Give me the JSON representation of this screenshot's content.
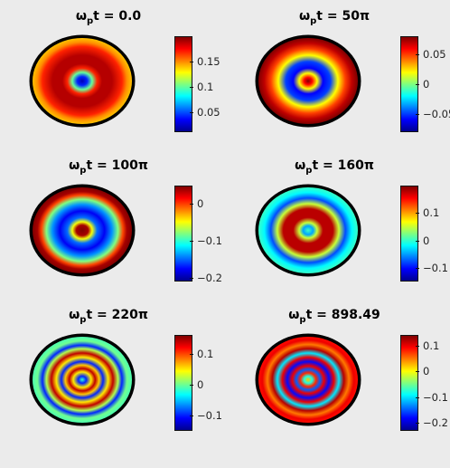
{
  "chart_data": [
    {
      "type": "heatmap",
      "title": {
        "omega": "ω",
        "sub": "p",
        "rest": "t = 0.0"
      },
      "colorbar": {
        "range": [
          0.01,
          0.2
        ],
        "ticks": [
          0.05,
          0.1,
          0.15
        ],
        "tick_labels": [
          "0.05",
          "0.1",
          "0.15"
        ]
      },
      "rings": [
        {
          "r": 0.0,
          "v": 0.02
        },
        {
          "r": 0.1,
          "v": 0.04
        },
        {
          "r": 0.2,
          "v": 0.1
        },
        {
          "r": 0.3,
          "v": 0.17
        },
        {
          "r": 0.4,
          "v": 0.19
        },
        {
          "r": 0.6,
          "v": 0.19
        },
        {
          "r": 0.8,
          "v": 0.17
        },
        {
          "r": 0.9,
          "v": 0.15
        },
        {
          "r": 1.0,
          "v": 0.14
        }
      ]
    },
    {
      "type": "heatmap",
      "title": {
        "omega": "ω",
        "sub": "p",
        "rest": "t = 50π"
      },
      "colorbar": {
        "range": [
          -0.08,
          0.08
        ],
        "ticks": [
          -0.05,
          0,
          0.05
        ],
        "tick_labels": [
          "−0.05",
          "0",
          "0.05"
        ]
      },
      "rings": [
        {
          "r": 0.0,
          "v": 0.08
        },
        {
          "r": 0.08,
          "v": 0.06
        },
        {
          "r": 0.18,
          "v": 0.02
        },
        {
          "r": 0.3,
          "v": -0.06
        },
        {
          "r": 0.45,
          "v": -0.05
        },
        {
          "r": 0.6,
          "v": 0.02
        },
        {
          "r": 0.75,
          "v": 0.05
        },
        {
          "r": 0.88,
          "v": 0.07
        },
        {
          "r": 1.0,
          "v": 0.08
        }
      ]
    },
    {
      "type": "heatmap",
      "title": {
        "omega": "ω",
        "sub": "p",
        "rest": "t = 100π"
      },
      "colorbar": {
        "range": [
          -0.21,
          0.05
        ],
        "ticks": [
          -0.2,
          -0.1,
          0
        ],
        "tick_labels": [
          "−0.2",
          "−0.1",
          "0"
        ]
      },
      "rings": [
        {
          "r": 0.0,
          "v": 0.05
        },
        {
          "r": 0.12,
          "v": 0.04
        },
        {
          "r": 0.2,
          "v": -0.05
        },
        {
          "r": 0.3,
          "v": -0.15
        },
        {
          "r": 0.45,
          "v": -0.18
        },
        {
          "r": 0.6,
          "v": -0.14
        },
        {
          "r": 0.72,
          "v": -0.08
        },
        {
          "r": 0.82,
          "v": 0.0
        },
        {
          "r": 0.9,
          "v": 0.04
        },
        {
          "r": 1.0,
          "v": 0.05
        }
      ]
    },
    {
      "type": "heatmap",
      "title": {
        "omega": "ω",
        "sub": "p",
        "rest": "t = 160π"
      },
      "colorbar": {
        "range": [
          -0.15,
          0.2
        ],
        "ticks": [
          -0.1,
          0,
          0.1
        ],
        "tick_labels": [
          "−0.1",
          "0",
          "0.1"
        ]
      },
      "rings": [
        {
          "r": 0.0,
          "v": 0.0
        },
        {
          "r": 0.1,
          "v": -0.05
        },
        {
          "r": 0.18,
          "v": 0.05
        },
        {
          "r": 0.3,
          "v": 0.18
        },
        {
          "r": 0.5,
          "v": 0.18
        },
        {
          "r": 0.62,
          "v": 0.05
        },
        {
          "r": 0.75,
          "v": -0.08
        },
        {
          "r": 0.88,
          "v": -0.02
        },
        {
          "r": 1.0,
          "v": 0.0
        }
      ]
    },
    {
      "type": "heatmap",
      "title": {
        "omega": "ω",
        "sub": "p",
        "rest": "t = 220π"
      },
      "colorbar": {
        "range": [
          -0.15,
          0.16
        ],
        "ticks": [
          -0.1,
          0,
          0.1
        ],
        "tick_labels": [
          "−0.1",
          "0",
          "0.1"
        ]
      },
      "rings": [
        {
          "r": 0.0,
          "v": -0.02
        },
        {
          "r": 0.08,
          "v": -0.1
        },
        {
          "r": 0.18,
          "v": 0.05
        },
        {
          "r": 0.26,
          "v": 0.14
        },
        {
          "r": 0.34,
          "v": 0.06
        },
        {
          "r": 0.42,
          "v": -0.1
        },
        {
          "r": 0.52,
          "v": 0.05
        },
        {
          "r": 0.62,
          "v": 0.14
        },
        {
          "r": 0.72,
          "v": 0.02
        },
        {
          "r": 0.8,
          "v": -0.1
        },
        {
          "r": 0.9,
          "v": 0.0
        },
        {
          "r": 1.0,
          "v": -0.01
        }
      ]
    },
    {
      "type": "heatmap",
      "title": {
        "omega": "ω",
        "sub": "p",
        "rest": "t = 898.49"
      },
      "colorbar": {
        "range": [
          -0.23,
          0.14
        ],
        "ticks": [
          -0.2,
          -0.1,
          0,
          0.1
        ],
        "tick_labels": [
          "−0.2",
          "−0.1",
          "0",
          "0.1"
        ]
      },
      "rings": [
        {
          "r": 0.0,
          "v": 0.02
        },
        {
          "r": 0.08,
          "v": -0.08
        },
        {
          "r": 0.16,
          "v": 0.08
        },
        {
          "r": 0.24,
          "v": -0.15
        },
        {
          "r": 0.32,
          "v": 0.1
        },
        {
          "r": 0.42,
          "v": -0.18
        },
        {
          "r": 0.52,
          "v": 0.1
        },
        {
          "r": 0.62,
          "v": -0.1
        },
        {
          "r": 0.72,
          "v": 0.12
        },
        {
          "r": 0.82,
          "v": 0.05
        },
        {
          "r": 0.92,
          "v": 0.1
        },
        {
          "r": 1.0,
          "v": 0.09
        }
      ]
    }
  ]
}
